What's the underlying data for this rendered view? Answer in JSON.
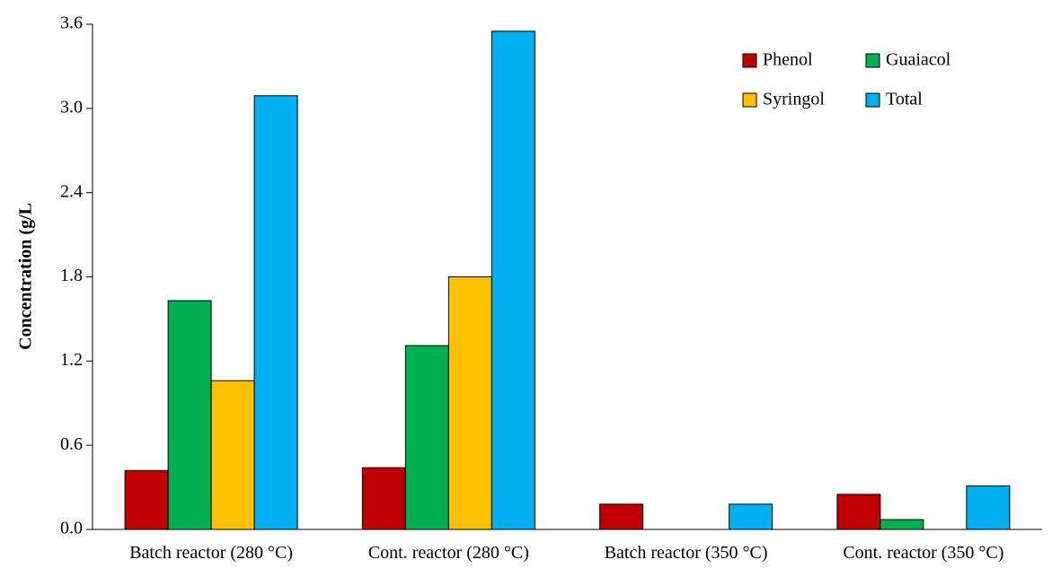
{
  "chart_data": {
    "type": "bar",
    "title": "",
    "xlabel": "",
    "ylabel": "Concentration (g/L",
    "ylim": [
      0,
      3.6
    ],
    "yticks": [
      "0.0",
      "0.6",
      "1.2",
      "1.8",
      "2.4",
      "3.0",
      "3.6"
    ],
    "grid": false,
    "legend_position": "top-right",
    "categories": [
      "Batch reactor (280 °C)",
      "Cont. reactor (280 °C)",
      "Batch reactor (350 °C)",
      "Cont. reactor (350 °C)"
    ],
    "series": [
      {
        "name": "Phenol",
        "color": "#c00000",
        "values": [
          0.42,
          0.44,
          0.18,
          0.25
        ]
      },
      {
        "name": "Guaiacol",
        "color": "#00b050",
        "values": [
          1.63,
          1.31,
          0.0,
          0.07
        ]
      },
      {
        "name": "Syringol",
        "color": "#ffc000",
        "values": [
          1.06,
          1.8,
          0.0,
          0.0
        ]
      },
      {
        "name": "Total",
        "color": "#00b0f0",
        "values": [
          3.09,
          3.55,
          0.18,
          0.31
        ]
      }
    ]
  }
}
